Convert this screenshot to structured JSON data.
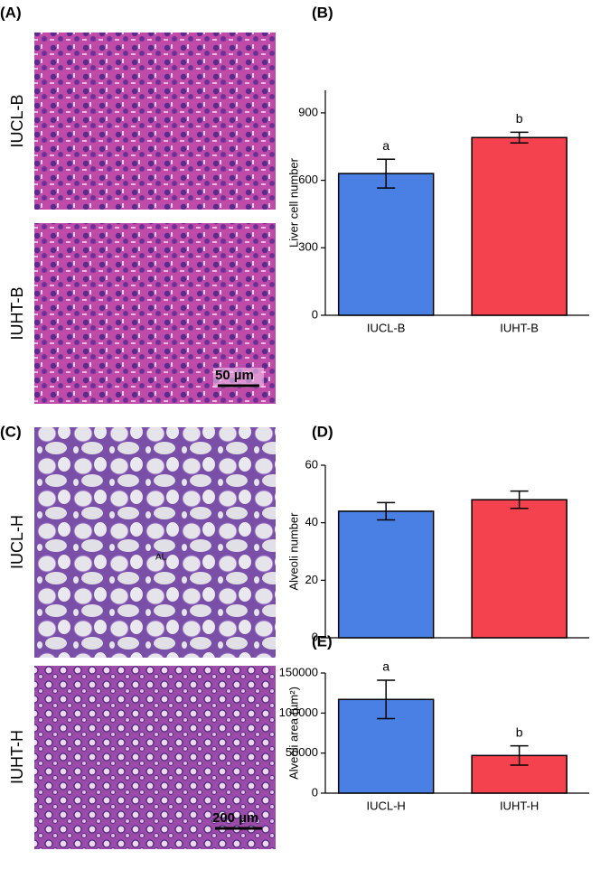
{
  "chart_data": [
    {
      "type": "bar",
      "panel": "(B)",
      "ylabel": "Liver cell number",
      "categories": [
        "IUCL-B",
        "IUHT-B"
      ],
      "values": [
        630,
        790
      ],
      "errors": [
        64,
        24
      ],
      "annotations": [
        "a",
        "b"
      ],
      "colors": [
        "#4a7fe3",
        "#f5424f"
      ],
      "ylim": [
        0,
        1000
      ],
      "yticks": [
        0,
        300,
        600,
        900
      ]
    },
    {
      "type": "bar",
      "panel": "(D)",
      "ylabel": "Alveoli number",
      "categories": [
        null,
        null
      ],
      "values": [
        44,
        48
      ],
      "errors": [
        3,
        3
      ],
      "colors": [
        "#4a7fe3",
        "#f5424f"
      ],
      "ylim": [
        0,
        60
      ],
      "yticks": [
        0,
        20,
        40,
        60
      ]
    },
    {
      "type": "bar",
      "panel": "(E)",
      "ylabel": "Alveoli area (µm²)",
      "categories": [
        "IUCL-H",
        "IUHT-H"
      ],
      "values": [
        117000,
        47000
      ],
      "errors": [
        24000,
        12000
      ],
      "annotations": [
        "a",
        "b"
      ],
      "colors": [
        "#4a7fe3",
        "#f5424f"
      ],
      "ylim": [
        0,
        150000
      ],
      "yticks": [
        0,
        50000,
        100000,
        150000
      ]
    }
  ],
  "images": {
    "panel_a": "(A)",
    "panel_c": "(C)",
    "a_top": "IUCL-B",
    "a_bottom": "IUHT-B",
    "a_scale": "50 µm",
    "c_top": "IUCL-H",
    "c_bottom": "IUHT-H",
    "c_scale": "200 µm",
    "c_marker": "AL"
  }
}
